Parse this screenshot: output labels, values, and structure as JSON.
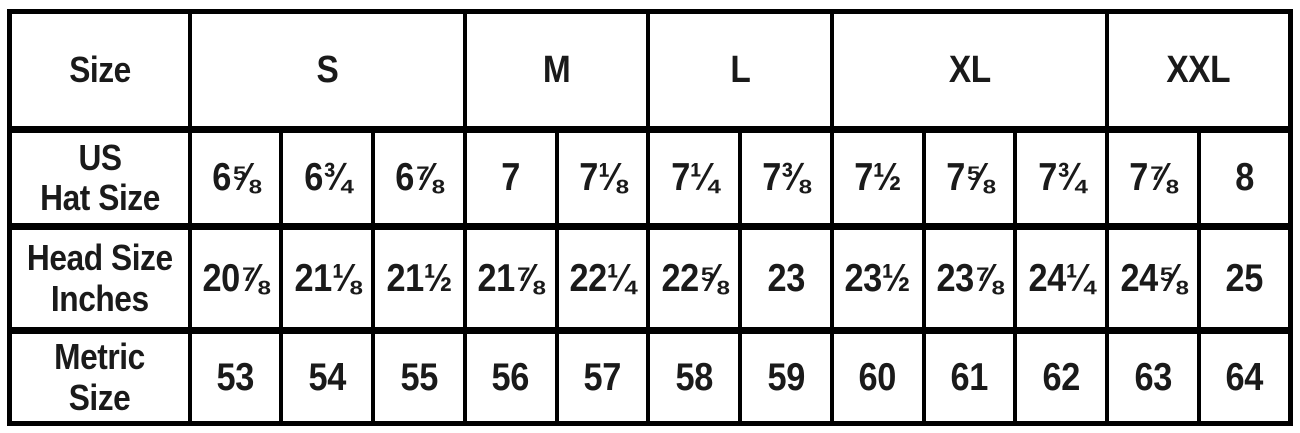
{
  "page": {
    "background_color": "#ffffff",
    "border_color": "#000000",
    "text_color": "#1a1a1a"
  },
  "chart_data": {
    "type": "table",
    "corner_label": "Size",
    "groups": [
      {
        "label": "S",
        "colspan": 3
      },
      {
        "label": "M",
        "colspan": 2
      },
      {
        "label": "L",
        "colspan": 2
      },
      {
        "label": "XL",
        "colspan": 3
      },
      {
        "label": "XXL",
        "colspan": 2
      }
    ],
    "rows": [
      {
        "label_lines": [
          "US",
          "Hat Size"
        ],
        "values": [
          "6⅝",
          "6¾",
          "6⅞",
          "7",
          "7⅛",
          "7¼",
          "7⅜",
          "7½",
          "7⅝",
          "7¾",
          "7⅞",
          "8"
        ]
      },
      {
        "label_lines": [
          "Head Size",
          "Inches"
        ],
        "values": [
          "20⅞",
          "21⅛",
          "21½",
          "21⅞",
          "22¼",
          "22⅝",
          "23",
          "23½",
          "23⅞",
          "24¼",
          "24⅝",
          "25"
        ]
      },
      {
        "label_lines": [
          "Metric",
          "Size"
        ],
        "values": [
          "53",
          "54",
          "55",
          "56",
          "57",
          "58",
          "59",
          "60",
          "61",
          "62",
          "63",
          "64"
        ]
      }
    ]
  }
}
